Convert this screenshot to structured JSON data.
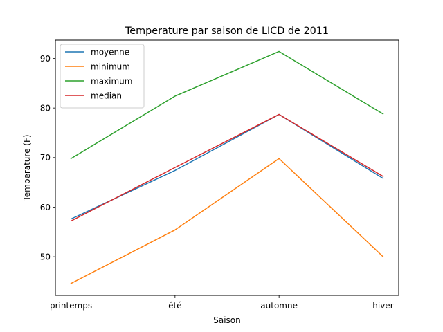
{
  "chart_data": {
    "type": "line",
    "title": "Temperature par saison de LICD de 2011",
    "xlabel": "Saison",
    "ylabel": "Temperature (F)",
    "categories": [
      "printemps",
      "été",
      "automne",
      "hiver"
    ],
    "ylim": [
      42.2,
      93.7
    ],
    "yticks": [
      50,
      60,
      70,
      80,
      90
    ],
    "grid": false,
    "legend_position": "top-left",
    "series": [
      {
        "name": "moyenne",
        "color": "#1f77b4",
        "values": [
          57.6,
          67.4,
          78.7,
          65.8
        ]
      },
      {
        "name": "minimum",
        "color": "#ff7f0e",
        "values": [
          44.6,
          55.4,
          69.8,
          50.0
        ]
      },
      {
        "name": "maximum",
        "color": "#2ca02c",
        "values": [
          69.8,
          82.4,
          91.4,
          78.8
        ]
      },
      {
        "name": "median",
        "color": "#d62728",
        "values": [
          57.2,
          68.0,
          78.7,
          66.2
        ]
      }
    ]
  }
}
